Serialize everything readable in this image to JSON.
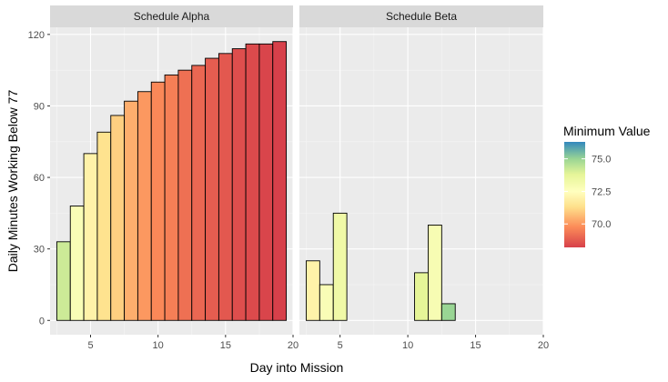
{
  "chart_data": {
    "type": "bar",
    "x_axis": {
      "label": "Day into Mission",
      "range": [
        2,
        20
      ],
      "ticks": [
        5,
        10,
        15,
        20
      ]
    },
    "y_axis": {
      "label": "Daily Minutes Working Below 77",
      "range": [
        -6,
        123
      ],
      "ticks": [
        0,
        30,
        60,
        90,
        120
      ]
    },
    "grid": true,
    "legend": {
      "title": "Minimum Value",
      "placement": "right",
      "range": [
        68.2,
        76.3
      ],
      "ticks": [
        {
          "value": 70.0,
          "label": "70.0"
        },
        {
          "value": 72.5,
          "label": "72.5"
        },
        {
          "value": 75.0,
          "label": "75.0"
        }
      ],
      "stops": [
        {
          "value": 68.2,
          "color": "#d7404a"
        },
        {
          "value": 69.8,
          "color": "#fc8d59"
        },
        {
          "value": 71.3,
          "color": "#fee08b"
        },
        {
          "value": 72.5,
          "color": "#ffffbf"
        },
        {
          "value": 73.8,
          "color": "#e6f598"
        },
        {
          "value": 75.0,
          "color": "#99d594"
        },
        {
          "value": 76.3,
          "color": "#3288bd"
        }
      ]
    },
    "panels": [
      {
        "name": "Schedule Alpha",
        "bars": [
          {
            "day": 3,
            "minutes": 33,
            "min_value": 74.2
          },
          {
            "day": 4,
            "minutes": 48,
            "min_value": 72.8
          },
          {
            "day": 5,
            "minutes": 70,
            "min_value": 72.0
          },
          {
            "day": 6,
            "minutes": 79,
            "min_value": 71.4
          },
          {
            "day": 7,
            "minutes": 86,
            "min_value": 71.0
          },
          {
            "day": 8,
            "minutes": 92,
            "min_value": 70.4
          },
          {
            "day": 9,
            "minutes": 96,
            "min_value": 70.0
          },
          {
            "day": 10,
            "minutes": 100,
            "min_value": 69.7
          },
          {
            "day": 11,
            "minutes": 103,
            "min_value": 69.5
          },
          {
            "day": 12,
            "minutes": 105,
            "min_value": 69.2
          },
          {
            "day": 13,
            "minutes": 107,
            "min_value": 69.0
          },
          {
            "day": 14,
            "minutes": 110,
            "min_value": 68.8
          },
          {
            "day": 15,
            "minutes": 112,
            "min_value": 68.7
          },
          {
            "day": 16,
            "minutes": 114,
            "min_value": 68.5
          },
          {
            "day": 17,
            "minutes": 116,
            "min_value": 68.4
          },
          {
            "day": 18,
            "minutes": 116,
            "min_value": 68.3
          },
          {
            "day": 19,
            "minutes": 117,
            "min_value": 68.2
          }
        ]
      },
      {
        "name": "Schedule Beta",
        "bars": [
          {
            "day": 3,
            "minutes": 25,
            "min_value": 72.0
          },
          {
            "day": 4,
            "minutes": 15,
            "min_value": 72.8
          },
          {
            "day": 5,
            "minutes": 45,
            "min_value": 73.3
          },
          {
            "day": 6,
            "minutes": 0,
            "min_value": 73.5
          },
          {
            "day": 7,
            "minutes": 0,
            "min_value": 73.5
          },
          {
            "day": 8,
            "minutes": 0,
            "min_value": 73.5
          },
          {
            "day": 9,
            "minutes": 0,
            "min_value": 73.5
          },
          {
            "day": 10,
            "minutes": 0,
            "min_value": 73.5
          },
          {
            "day": 11,
            "minutes": 20,
            "min_value": 73.8
          },
          {
            "day": 12,
            "minutes": 40,
            "min_value": 72.9
          },
          {
            "day": 13,
            "minutes": 7,
            "min_value": 75.0
          },
          {
            "day": 14,
            "minutes": 0,
            "min_value": 73.5
          },
          {
            "day": 15,
            "minutes": 0,
            "min_value": 73.5
          },
          {
            "day": 16,
            "minutes": 0,
            "min_value": 73.5
          },
          {
            "day": 17,
            "minutes": 0,
            "min_value": 73.5
          },
          {
            "day": 18,
            "minutes": 0,
            "min_value": 73.5
          },
          {
            "day": 19,
            "minutes": 0,
            "min_value": 73.5
          }
        ]
      }
    ]
  }
}
